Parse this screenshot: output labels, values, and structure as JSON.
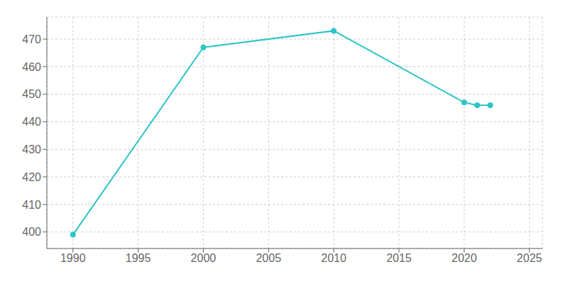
{
  "chart_data": {
    "type": "line",
    "x": [
      1990,
      2000,
      2010,
      2020,
      2021,
      2022
    ],
    "values": [
      399,
      467,
      473,
      447,
      446,
      446
    ],
    "color": "#2EC4C4",
    "marker": "circle",
    "xlim": [
      1988,
      2026
    ],
    "ylim": [
      394,
      478
    ],
    "xticks": [
      1990,
      1995,
      2000,
      2005,
      2010,
      2015,
      2020,
      2025
    ],
    "yticks": [
      400,
      410,
      420,
      430,
      440,
      450,
      460,
      470
    ],
    "grid": true
  }
}
